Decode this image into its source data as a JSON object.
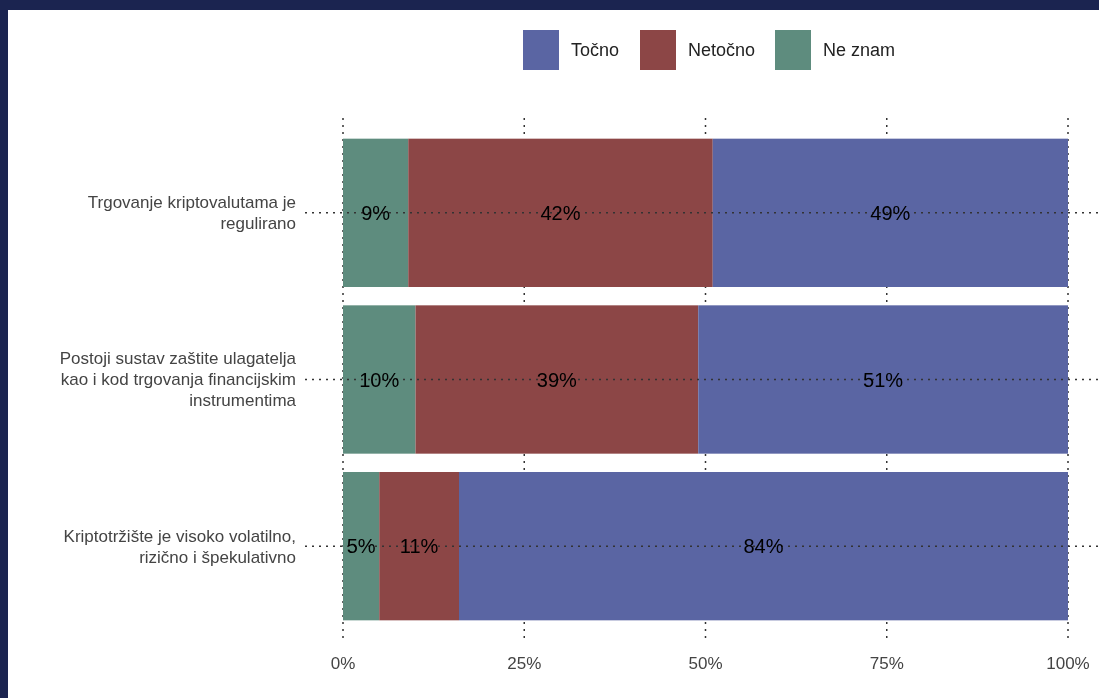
{
  "chart_data": {
    "type": "bar",
    "orientation": "horizontal",
    "stacked": true,
    "categories": [
      "Trgovanje kriptovalutama je regulirano",
      "Postoji sustav zaštite ulagatelja kao i kod trgovanja financijskim instrumentima",
      "Kriptotržište je visoko volatilno, rizično i špekulativno"
    ],
    "series": [
      {
        "name": "Ne znam",
        "color": "#5e8c7e",
        "values": [
          9,
          10,
          5
        ],
        "value_labels": [
          "9%",
          "10%",
          "5%"
        ]
      },
      {
        "name": "Netočno",
        "color": "#8c4646",
        "values": [
          42,
          39,
          11
        ],
        "value_labels": [
          "42%",
          "39%",
          "11%"
        ]
      },
      {
        "name": "Točno",
        "color": "#5a65a3",
        "values": [
          49,
          51,
          84
        ],
        "value_labels": [
          "49%",
          "51%",
          "84%"
        ]
      }
    ],
    "xlim": [
      0,
      100
    ],
    "xticks": [
      {
        "value": 0,
        "label": "0%"
      },
      {
        "value": 25,
        "label": "25%"
      },
      {
        "value": 50,
        "label": "50%"
      },
      {
        "value": 75,
        "label": "75%"
      },
      {
        "value": 100,
        "label": "100%"
      }
    ],
    "grid": true,
    "legend": "top"
  }
}
